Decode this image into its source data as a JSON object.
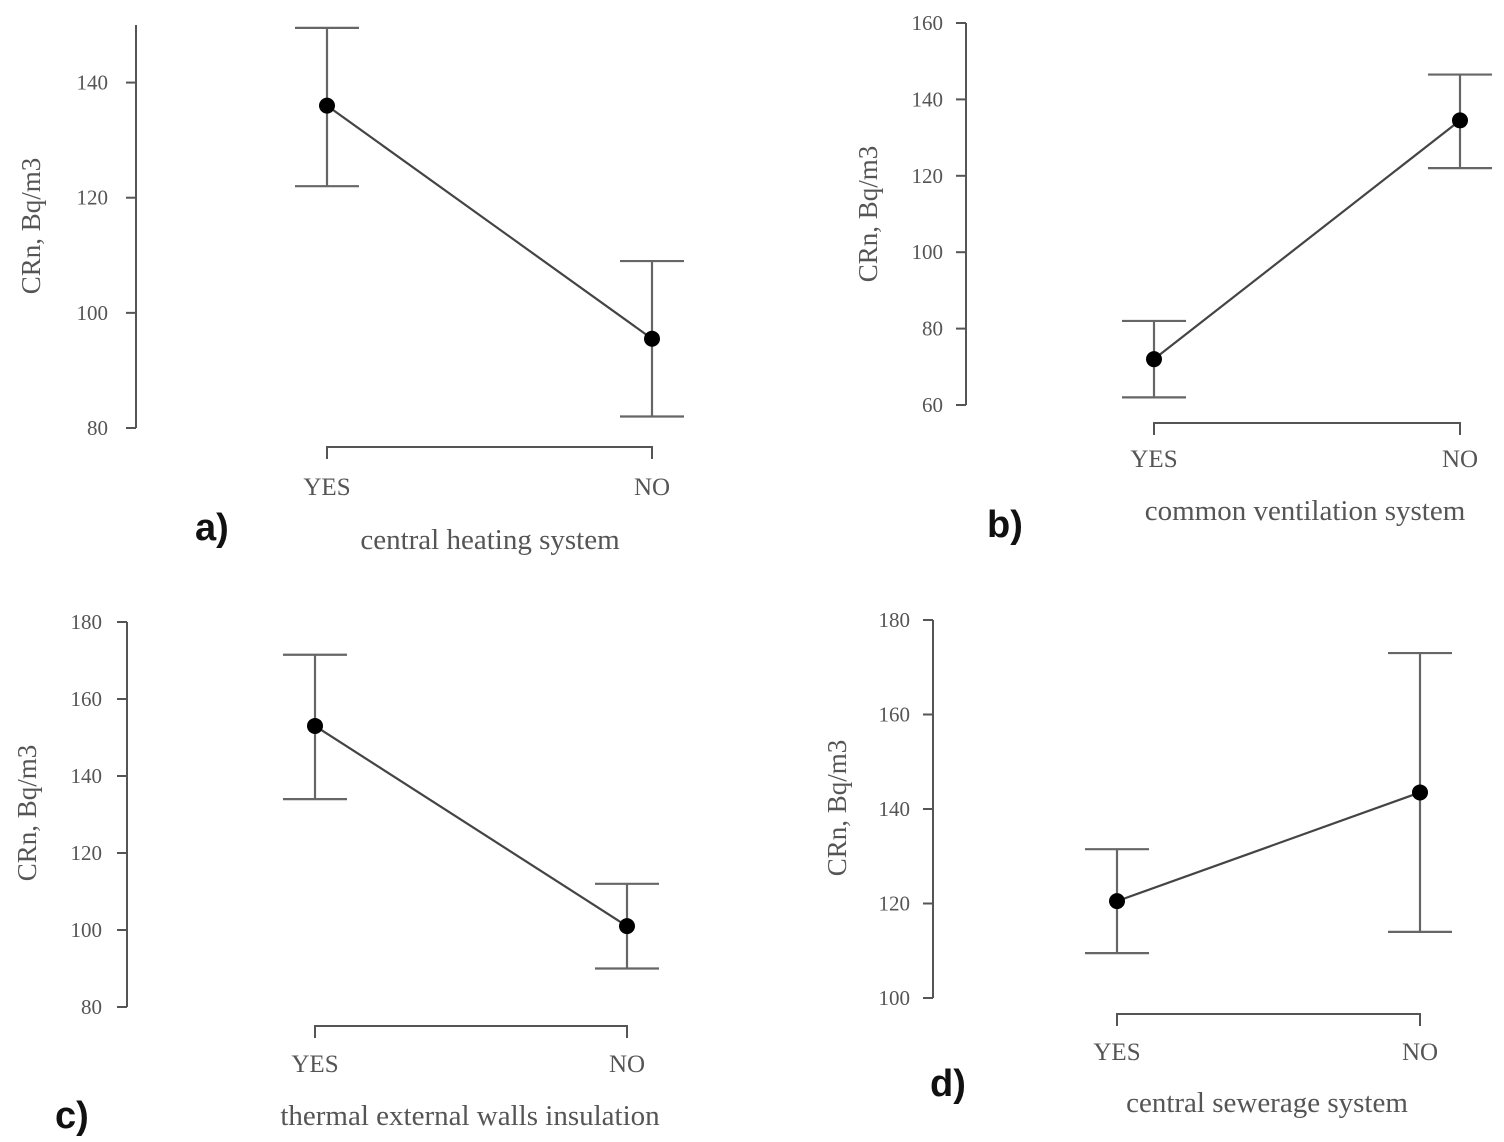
{
  "chart_data": [
    {
      "type": "line",
      "panel": "a)",
      "categories": [
        "YES",
        "NO"
      ],
      "values": [
        136,
        95.5
      ],
      "error_low": [
        122,
        82
      ],
      "error_high": [
        149.5,
        109
      ],
      "xlabel": "central heating system",
      "ylabel": "CRn, Bq/m3",
      "ylim": [
        80,
        150
      ],
      "yticks": [
        80,
        100,
        120,
        140
      ]
    },
    {
      "type": "line",
      "panel": "b)",
      "categories": [
        "YES",
        "NO"
      ],
      "values": [
        72,
        134.5
      ],
      "error_low": [
        62,
        122
      ],
      "error_high": [
        82,
        146.5
      ],
      "xlabel": "common ventilation system",
      "ylabel": "CRn, Bq/m3",
      "ylim": [
        60,
        160
      ],
      "yticks": [
        60,
        80,
        100,
        120,
        140,
        160
      ]
    },
    {
      "type": "line",
      "panel": "c)",
      "categories": [
        "YES",
        "NO"
      ],
      "values": [
        153,
        101
      ],
      "error_low": [
        134,
        90
      ],
      "error_high": [
        171.5,
        112
      ],
      "xlabel": "thermal external walls insulation",
      "ylabel": "CRn, Bq/m3",
      "ylim": [
        80,
        180
      ],
      "yticks": [
        80,
        100,
        120,
        140,
        160,
        180
      ]
    },
    {
      "type": "line",
      "panel": "d)",
      "categories": [
        "YES",
        "NO"
      ],
      "values": [
        120.5,
        143.5
      ],
      "error_low": [
        109.5,
        114
      ],
      "error_high": [
        131.5,
        173
      ],
      "xlabel": "central sewerage system",
      "ylabel": "CRn, Bq/m3",
      "ylim": [
        100,
        180
      ],
      "yticks": [
        100,
        120,
        140,
        160,
        180
      ]
    }
  ]
}
